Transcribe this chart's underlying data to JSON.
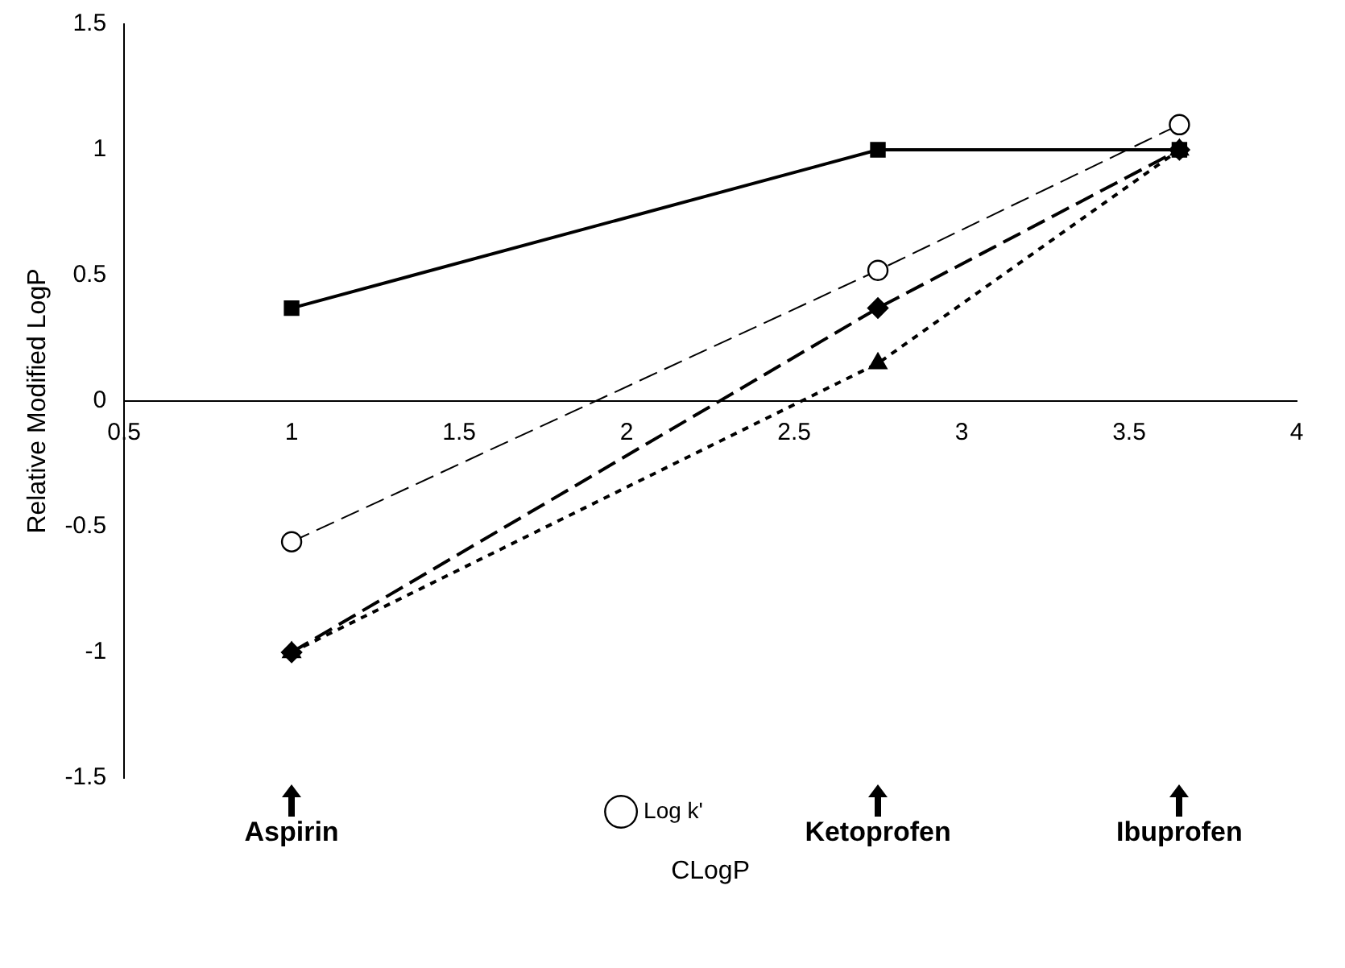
{
  "chart_data": {
    "type": "line",
    "xlabel": "CLogP",
    "ylabel": "Relative Modified LogP",
    "xlim": [
      0.5,
      4
    ],
    "xticks": [
      0.5,
      1,
      1.5,
      2,
      2.5,
      3,
      3.5,
      4
    ],
    "ylim": [
      -1.5,
      1.5
    ],
    "yticks": [
      -1.5,
      -1,
      -0.5,
      0,
      0.5,
      1,
      1.5
    ],
    "x": [
      1,
      2.75,
      3.65
    ],
    "series": [
      {
        "color": "#000000",
        "marker": "diamond",
        "line_style": "dashed",
        "values": [
          -1,
          0.37,
          1
        ]
      },
      {
        "color": "#000000",
        "marker": "square",
        "line_style": "solid",
        "values": [
          0.37,
          1,
          1
        ]
      },
      {
        "color": "#000000",
        "marker": "triangle",
        "line_style": "dotted",
        "values": [
          -1,
          0.15,
          1
        ]
      },
      {
        "name": "Log k'",
        "color": "#000000",
        "marker": "circle",
        "line_style": "dashed",
        "values": [
          -0.56,
          0.52,
          1.1
        ]
      }
    ],
    "annotations": [
      "Aspirin",
      "Ketoprofen",
      "Ibuprofen"
    ],
    "grid": false,
    "legend": "bottom"
  }
}
